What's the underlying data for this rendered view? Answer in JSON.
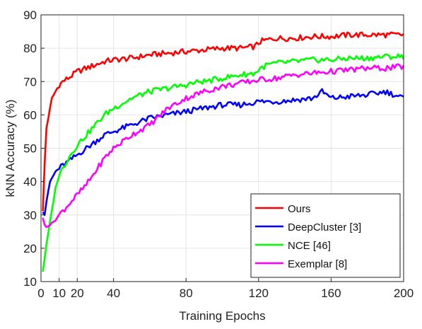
{
  "chart_data": {
    "type": "line",
    "xlabel": "Training Epochs",
    "ylabel": "kNN Accuracy (%)",
    "xlim": [
      0,
      200
    ],
    "ylim": [
      10,
      90
    ],
    "xticks": [
      0,
      10,
      20,
      40,
      80,
      120,
      160,
      200
    ],
    "yticks": [
      10,
      20,
      30,
      40,
      50,
      60,
      70,
      80,
      90
    ],
    "grid": true,
    "legend_position": "bottom-right",
    "series": [
      {
        "name": "Ours",
        "color": "#ff0000",
        "x": [
          1,
          2,
          3,
          4,
          5,
          6,
          8,
          10,
          12,
          15,
          20,
          25,
          30,
          35,
          40,
          50,
          60,
          70,
          80,
          90,
          100,
          110,
          118,
          121,
          125,
          130,
          140,
          150,
          160,
          170,
          180,
          190,
          200
        ],
        "y": [
          31,
          45,
          56,
          59,
          62,
          65,
          67,
          69,
          70,
          71,
          73,
          74,
          75,
          76,
          76.5,
          77,
          78,
          78.5,
          79,
          79.5,
          80,
          80,
          80.5,
          82,
          82.5,
          83,
          83,
          83.5,
          83.5,
          84,
          84,
          84,
          84
        ]
      },
      {
        "name": "DeepCluster [3]",
        "color": "#0000ff",
        "x": [
          1,
          2,
          3,
          5,
          8,
          10,
          15,
          20,
          25,
          30,
          35,
          40,
          50,
          60,
          70,
          80,
          90,
          100,
          110,
          120,
          130,
          140,
          150,
          155,
          160,
          170,
          180,
          190,
          200
        ],
        "y": [
          31,
          30,
          34,
          40,
          43,
          44,
          46,
          48,
          50,
          52,
          54,
          55,
          57,
          59,
          60,
          61,
          62,
          63,
          63,
          64,
          64,
          64.5,
          65,
          67,
          65,
          65.5,
          66,
          67,
          65
        ]
      },
      {
        "name": "NCE [46]",
        "color": "#00ff00",
        "x": [
          1,
          2,
          3,
          5,
          8,
          10,
          15,
          20,
          25,
          30,
          35,
          40,
          50,
          60,
          70,
          80,
          88,
          90,
          100,
          110,
          118,
          121,
          125,
          130,
          140,
          150,
          160,
          170,
          180,
          190,
          200
        ],
        "y": [
          13,
          17,
          21,
          28,
          38,
          42,
          47,
          51,
          54,
          57,
          60,
          62,
          65,
          67,
          68,
          69,
          70,
          70,
          71,
          72,
          72.5,
          74,
          75,
          75.5,
          76,
          76.5,
          76.5,
          77,
          77,
          77.5,
          77.5
        ]
      },
      {
        "name": "Exemplar [8]",
        "color": "#ff00ff",
        "x": [
          1,
          2,
          3,
          5,
          8,
          10,
          15,
          20,
          25,
          30,
          35,
          40,
          50,
          60,
          70,
          80,
          90,
          100,
          110,
          120,
          130,
          140,
          150,
          160,
          170,
          180,
          190,
          200
        ],
        "y": [
          29,
          27,
          26.5,
          27,
          28.5,
          30,
          33,
          36,
          39,
          43,
          47,
          50,
          54,
          57,
          62,
          65,
          67,
          68.5,
          69.5,
          70.5,
          71,
          72,
          72.5,
          73,
          73.5,
          74,
          74,
          74.5
        ]
      }
    ]
  }
}
